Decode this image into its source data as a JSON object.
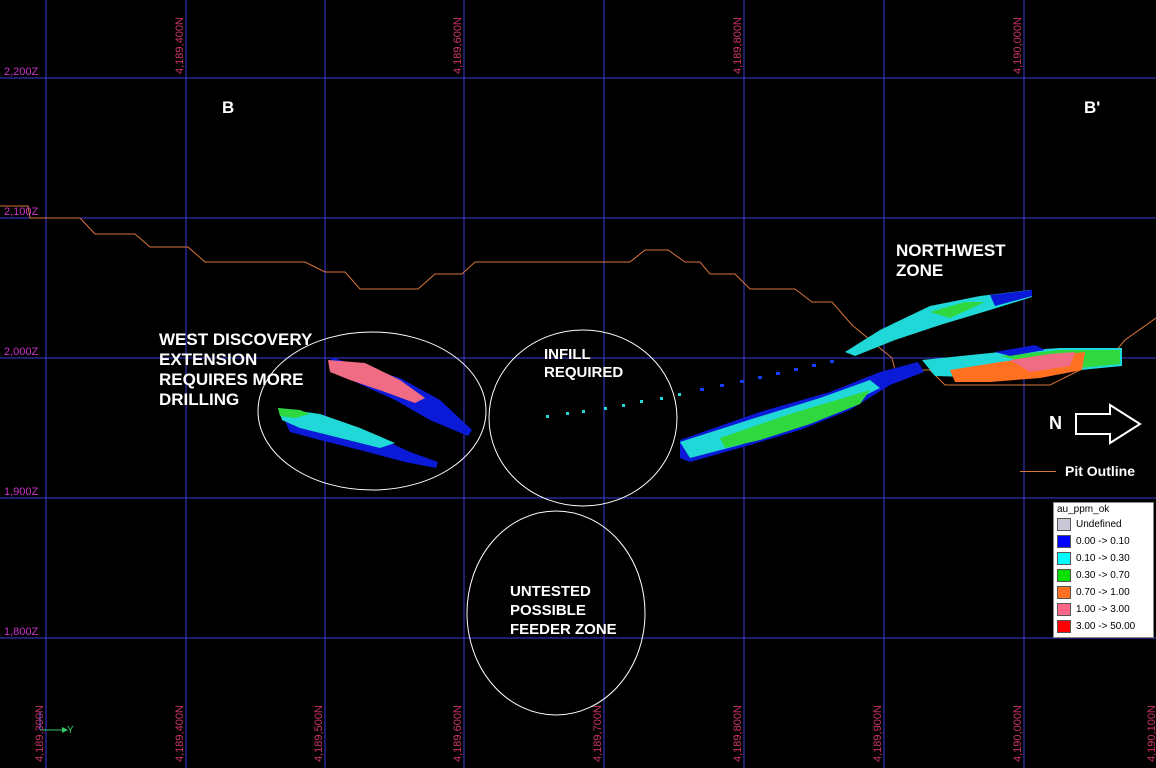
{
  "section": {
    "start_label": "B",
    "end_label": "B'",
    "north_arrow_label": "N"
  },
  "elevation_labels": [
    "2,200Z",
    "2,100Z",
    "2,000Z",
    "1,900Z",
    "1,800Z"
  ],
  "northing_labels_top": [
    "4,189,400N",
    "4,189,600N",
    "4,189,800N",
    "4,190,000N"
  ],
  "northing_labels_bottom": [
    "4,189,300N",
    "4,189,400N",
    "4,189,500N",
    "4,189,600N",
    "4,189,700N",
    "4,189,800N",
    "4,189,900N",
    "4,190,000N",
    "4,190,100N"
  ],
  "annotations": {
    "west_discovery": "WEST DISCOVERY\nEXTENSION\nREQUIRES MORE\nDRILLING",
    "infill": "INFILL\nREQUIRED",
    "untested": "UNTESTED\nPOSSIBLE\nFEEDER ZONE",
    "northwest": "NORTHWEST\nZONE"
  },
  "pit_legend": {
    "label": "Pit Outline",
    "color": "#d9753a"
  },
  "grade_legend": {
    "title": "au_ppm_ok",
    "items": [
      {
        "label": "Undefined",
        "color": "#c8c8d8"
      },
      {
        "label": "0.00 -> 0.10",
        "color": "#0000ff"
      },
      {
        "label": "0.10 -> 0.30",
        "color": "#00ffff"
      },
      {
        "label": "0.30 -> 0.70",
        "color": "#00e000"
      },
      {
        "label": "0.70 -> 1.00",
        "color": "#ff7020"
      },
      {
        "label": "1.00 -> 3.00",
        "color": "#ff6688"
      },
      {
        "label": "3.00 -> 50.00",
        "color": "#ff0000"
      }
    ]
  },
  "axis_tag": "Y",
  "colors": {
    "grid": "#3b3bdc",
    "elevation_text": "#cc33cc",
    "northing_text": "#cc3366"
  }
}
